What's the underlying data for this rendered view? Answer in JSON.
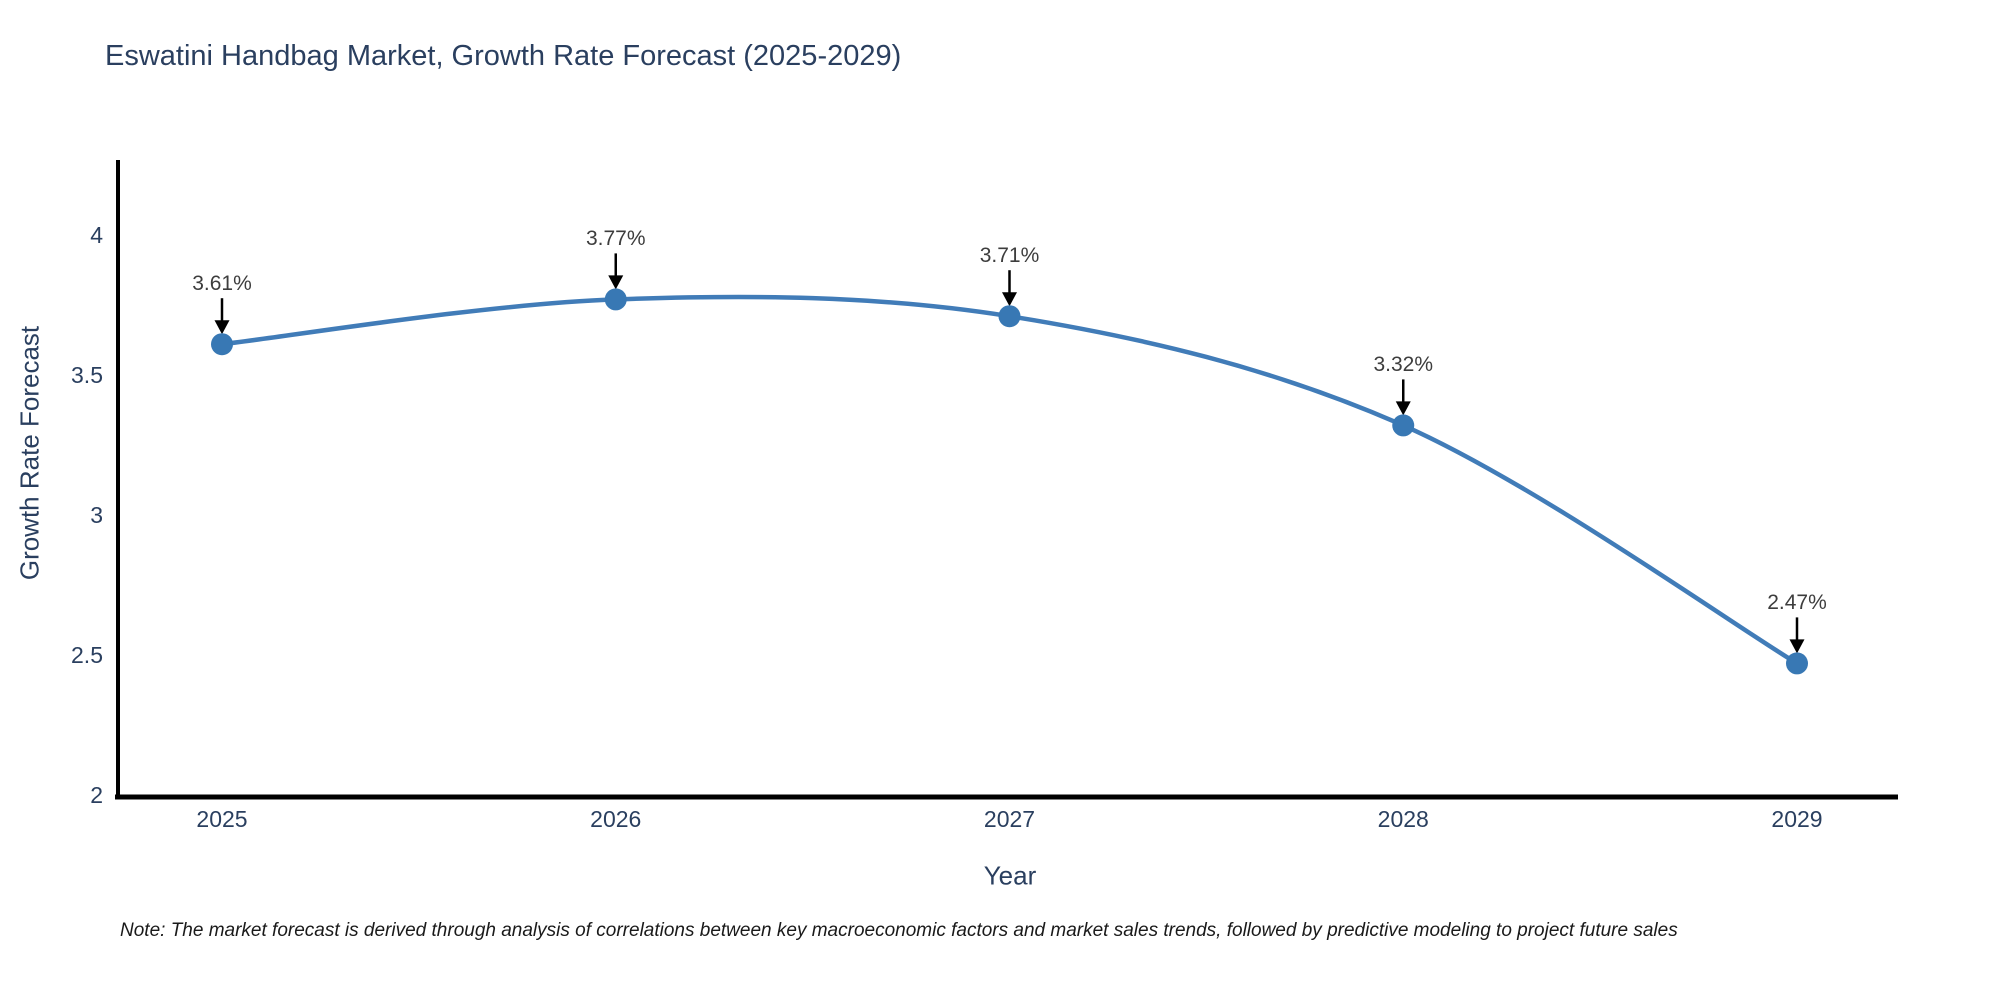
{
  "chart_data": {
    "type": "line",
    "title": "Eswatini Handbag Market, Growth Rate Forecast (2025-2029)",
    "xlabel": "Year",
    "ylabel": "Growth Rate Forecast",
    "categories": [
      "2025",
      "2026",
      "2027",
      "2028",
      "2029"
    ],
    "series": [
      {
        "name": "Growth Rate Forecast",
        "values": [
          3.61,
          3.77,
          3.71,
          3.32,
          2.47
        ],
        "point_labels": [
          "3.61%",
          "3.77%",
          "3.71%",
          "3.32%",
          "2.47%"
        ]
      }
    ],
    "yticks": [
      "2",
      "2.5",
      "3",
      "3.5",
      "4"
    ],
    "ytick_values": [
      2,
      2.5,
      3,
      3.5,
      4
    ],
    "ylim": [
      2,
      4.3
    ],
    "grid": false,
    "legend_position": "none",
    "line_shape": "spline",
    "colors": {
      "line": "#417cb8",
      "marker": "#3878b4",
      "arrow": "#000000",
      "axis": "#000000",
      "title_text": "#2a3f5f",
      "tick_text": "#2a3f5f",
      "annotation_text": "#3d3d3d"
    }
  },
  "note": "Note: The market forecast is derived through analysis of correlations between key macroeconomic factors and market sales trends, followed by predictive modeling to project future sales"
}
